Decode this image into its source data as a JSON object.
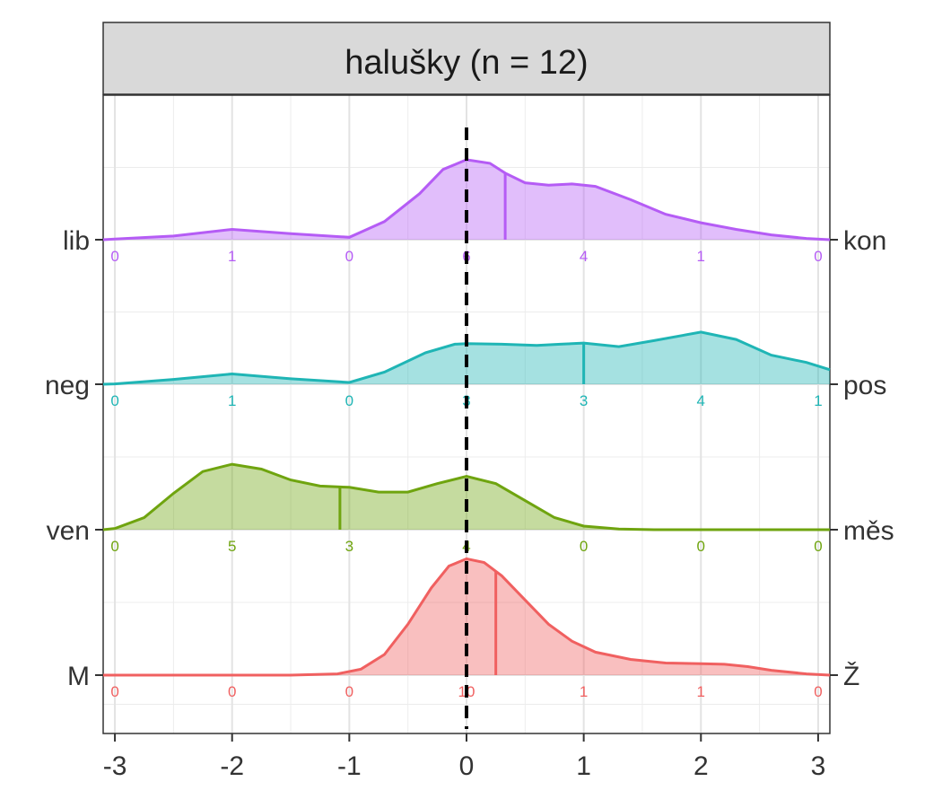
{
  "chart_data": {
    "type": "ridgeline-density",
    "panel_title": "halušky (n = 12)",
    "x_ticks": [
      -3,
      -2,
      -1,
      0,
      1,
      2,
      3
    ],
    "x_tick_labels": [
      "-3",
      "-2",
      "-1",
      "0",
      "1",
      "2",
      "3"
    ],
    "xlim": [
      -3.1,
      3.1
    ],
    "reference_line_x": 0,
    "grid": true,
    "count_positions": [
      -3,
      -2,
      -1,
      0,
      1,
      2,
      3
    ],
    "series": [
      {
        "left_label": "lib",
        "right_label": "kon",
        "color": "#b55cf5",
        "counts": [
          "0",
          "1",
          "0",
          "6",
          "4",
          "1",
          "0"
        ],
        "mean": 0.33,
        "density": [
          [
            -3.1,
            0.0
          ],
          [
            -3,
            0.005
          ],
          [
            -2.5,
            0.03
          ],
          [
            -2,
            0.085
          ],
          [
            -1.5,
            0.05
          ],
          [
            -1,
            0.02
          ],
          [
            -0.7,
            0.15
          ],
          [
            -0.4,
            0.38
          ],
          [
            -0.2,
            0.58
          ],
          [
            0,
            0.66
          ],
          [
            0.2,
            0.63
          ],
          [
            0.33,
            0.55
          ],
          [
            0.5,
            0.47
          ],
          [
            0.7,
            0.45
          ],
          [
            0.9,
            0.46
          ],
          [
            1.1,
            0.44
          ],
          [
            1.4,
            0.33
          ],
          [
            1.7,
            0.21
          ],
          [
            2,
            0.14
          ],
          [
            2.3,
            0.085
          ],
          [
            2.6,
            0.04
          ],
          [
            2.9,
            0.01
          ],
          [
            3.1,
            0.0
          ]
        ]
      },
      {
        "left_label": "neg",
        "right_label": "pos",
        "color": "#1fb5b5",
        "counts": [
          "0",
          "1",
          "0",
          "3",
          "3",
          "4",
          "1"
        ],
        "mean": 1,
        "density": [
          [
            -3.1,
            0.0
          ],
          [
            -3,
            0.003
          ],
          [
            -2.5,
            0.04
          ],
          [
            -2,
            0.085
          ],
          [
            -1.5,
            0.045
          ],
          [
            -1,
            0.015
          ],
          [
            -0.7,
            0.1
          ],
          [
            -0.35,
            0.26
          ],
          [
            -0.1,
            0.33
          ],
          [
            0,
            0.335
          ],
          [
            0.3,
            0.33
          ],
          [
            0.6,
            0.32
          ],
          [
            0.8,
            0.33
          ],
          [
            1,
            0.34
          ],
          [
            1.3,
            0.31
          ],
          [
            1.6,
            0.36
          ],
          [
            2,
            0.43
          ],
          [
            2.3,
            0.37
          ],
          [
            2.6,
            0.24
          ],
          [
            2.9,
            0.18
          ],
          [
            3.1,
            0.12
          ]
        ]
      },
      {
        "left_label": "ven",
        "right_label": "měs",
        "color": "#6fa40f",
        "counts": [
          "0",
          "5",
          "3",
          "4",
          "0",
          "0",
          "0"
        ],
        "mean": -1.08,
        "density": [
          [
            -3.1,
            0.0
          ],
          [
            -3,
            0.01
          ],
          [
            -2.75,
            0.1
          ],
          [
            -2.5,
            0.3
          ],
          [
            -2.25,
            0.48
          ],
          [
            -2,
            0.54
          ],
          [
            -1.75,
            0.5
          ],
          [
            -1.5,
            0.41
          ],
          [
            -1.25,
            0.36
          ],
          [
            -1,
            0.35
          ],
          [
            -0.75,
            0.31
          ],
          [
            -0.5,
            0.31
          ],
          [
            -0.25,
            0.38
          ],
          [
            0,
            0.44
          ],
          [
            0.25,
            0.38
          ],
          [
            0.5,
            0.24
          ],
          [
            0.75,
            0.1
          ],
          [
            1,
            0.03
          ],
          [
            1.3,
            0.005
          ],
          [
            1.6,
            0.0
          ],
          [
            3.1,
            0.0
          ]
        ]
      },
      {
        "left_label": "M",
        "right_label": "Ž",
        "color": "#f06060",
        "counts": [
          "0",
          "0",
          "0",
          "10",
          "1",
          "1",
          "0"
        ],
        "mean": 0.25,
        "density": [
          [
            -3.1,
            0.0
          ],
          [
            -1.5,
            0.0
          ],
          [
            -1.1,
            0.01
          ],
          [
            -0.9,
            0.05
          ],
          [
            -0.7,
            0.17
          ],
          [
            -0.5,
            0.42
          ],
          [
            -0.3,
            0.72
          ],
          [
            -0.15,
            0.9
          ],
          [
            0,
            0.96
          ],
          [
            0.15,
            0.93
          ],
          [
            0.3,
            0.82
          ],
          [
            0.5,
            0.62
          ],
          [
            0.7,
            0.42
          ],
          [
            0.9,
            0.28
          ],
          [
            1.1,
            0.19
          ],
          [
            1.4,
            0.13
          ],
          [
            1.7,
            0.1
          ],
          [
            2,
            0.095
          ],
          [
            2.2,
            0.09
          ],
          [
            2.4,
            0.07
          ],
          [
            2.6,
            0.04
          ],
          [
            2.9,
            0.01
          ],
          [
            3.1,
            0.0
          ]
        ]
      }
    ]
  }
}
